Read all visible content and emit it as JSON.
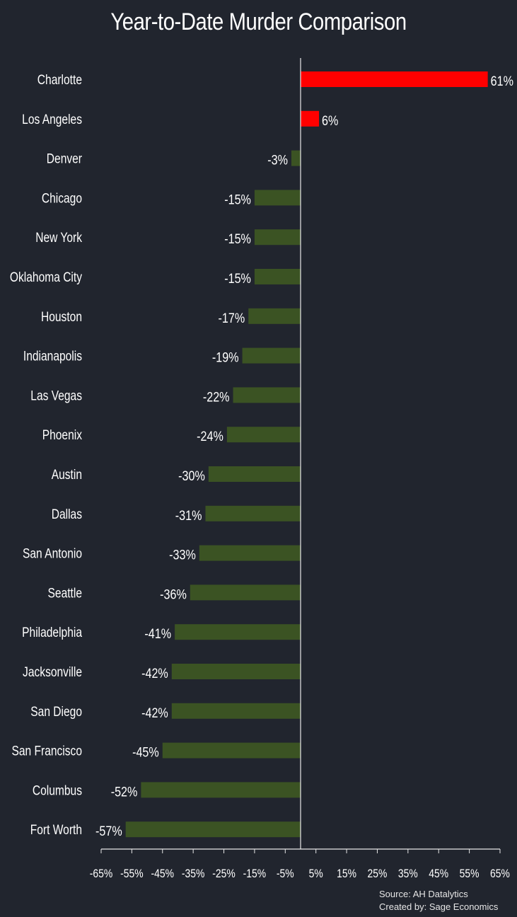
{
  "title": "Year-to-Date Murder Comparison",
  "source": "Source: AH Datalytics",
  "credit": "Created by: Sage Economics",
  "colors": {
    "background": "#21252e",
    "increase": "#ff0000",
    "decrease": "#3b5323",
    "axis": "#e8e8e8",
    "text": "#ffffff"
  },
  "chart_data": {
    "type": "bar",
    "orientation": "horizontal",
    "title": "Year-to-Date Murder Comparison",
    "categories": [
      "Charlotte",
      "Los Angeles",
      "Denver",
      "Chicago",
      "New York",
      "Oklahoma City",
      "Houston",
      "Indianapolis",
      "Las Vegas",
      "Phoenix",
      "Austin",
      "Dallas",
      "San Antonio",
      "Seattle",
      "Philadelphia",
      "Jacksonville",
      "San Diego",
      "San Francisco",
      "Columbus",
      "Fort Worth"
    ],
    "values": [
      61,
      6,
      -3,
      -15,
      -15,
      -15,
      -17,
      -19,
      -22,
      -24,
      -30,
      -31,
      -33,
      -36,
      -41,
      -42,
      -42,
      -45,
      -52,
      -57
    ],
    "value_labels": [
      "61%",
      "6%",
      "-3%",
      "-15%",
      "-15%",
      "-15%",
      "-17%",
      "-19%",
      "-22%",
      "-24%",
      "-30%",
      "-31%",
      "-33%",
      "-36%",
      "-41%",
      "-42%",
      "-42%",
      "-45%",
      "-52%",
      "-57%"
    ],
    "xlim": [
      -65,
      65
    ],
    "xticks": [
      -65,
      -55,
      -45,
      -35,
      -25,
      -15,
      -5,
      5,
      15,
      25,
      35,
      45,
      55,
      65
    ],
    "xtick_labels": [
      "-65%",
      "-55%",
      "-45%",
      "-35%",
      "-25%",
      "-15%",
      "-5%",
      "5%",
      "15%",
      "25%",
      "35%",
      "45%",
      "55%",
      "65%"
    ],
    "grid": false,
    "legend": "none",
    "xlabel": "",
    "ylabel": ""
  }
}
